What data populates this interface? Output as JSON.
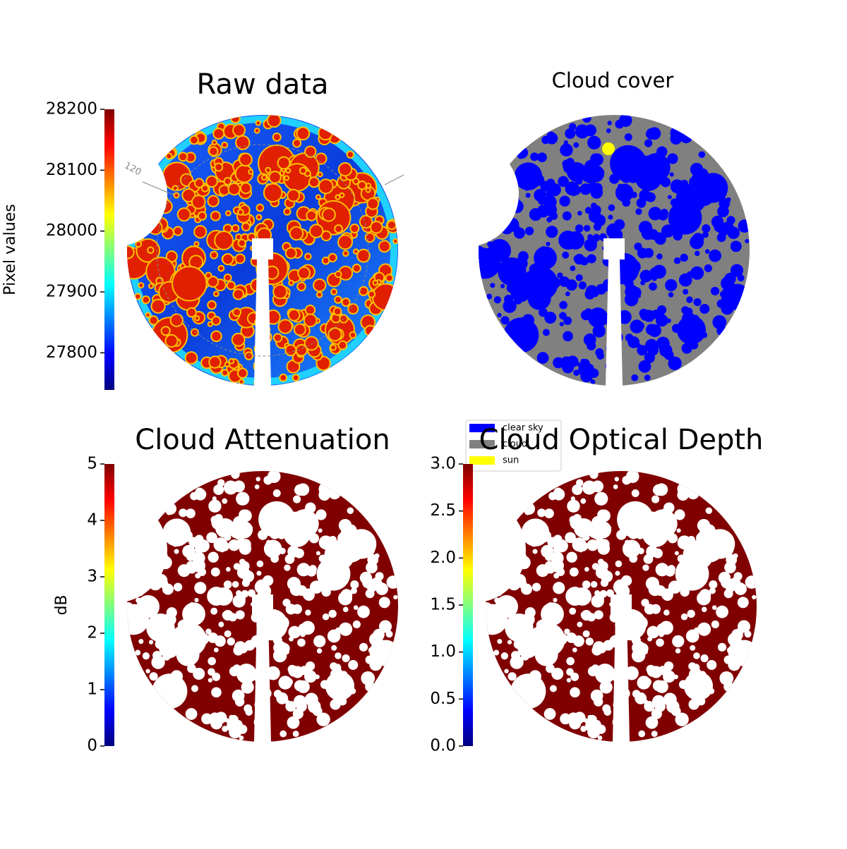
{
  "chart_data": [
    {
      "type": "image",
      "title": "Raw data",
      "colormap": "jet",
      "colorbar": {
        "label": "Pixel values",
        "lim": [
          27739,
          28200
        ],
        "ticks": [
          27800,
          27900,
          28000,
          28100,
          28200
        ]
      },
      "annotations": [
        "120"
      ]
    },
    {
      "type": "image",
      "title": "Cloud cover",
      "series": [
        {
          "name": "clear sky",
          "color": "#0000ff"
        },
        {
          "name": "cloud",
          "color": "#808080"
        },
        {
          "name": "sun",
          "color": "#ffff00"
        }
      ]
    },
    {
      "type": "image",
      "title": "Cloud Attenuation",
      "colormap": "jet",
      "colorbar": {
        "label": "dB",
        "lim": [
          0,
          5
        ],
        "ticks": [
          0,
          1,
          2,
          3,
          4,
          5
        ]
      }
    },
    {
      "type": "image",
      "title": "Cloud Optical Depth",
      "colormap": "jet",
      "colorbar": {
        "lim": [
          0,
          3
        ],
        "ticks": [
          {
            "value": 0,
            "label": "0.0"
          },
          0.5,
          {
            "value": 1,
            "label": "1.0"
          },
          1.5,
          {
            "value": 2,
            "label": "2.0"
          },
          2.5,
          {
            "value": 3,
            "label": "3.0"
          }
        ]
      }
    }
  ]
}
